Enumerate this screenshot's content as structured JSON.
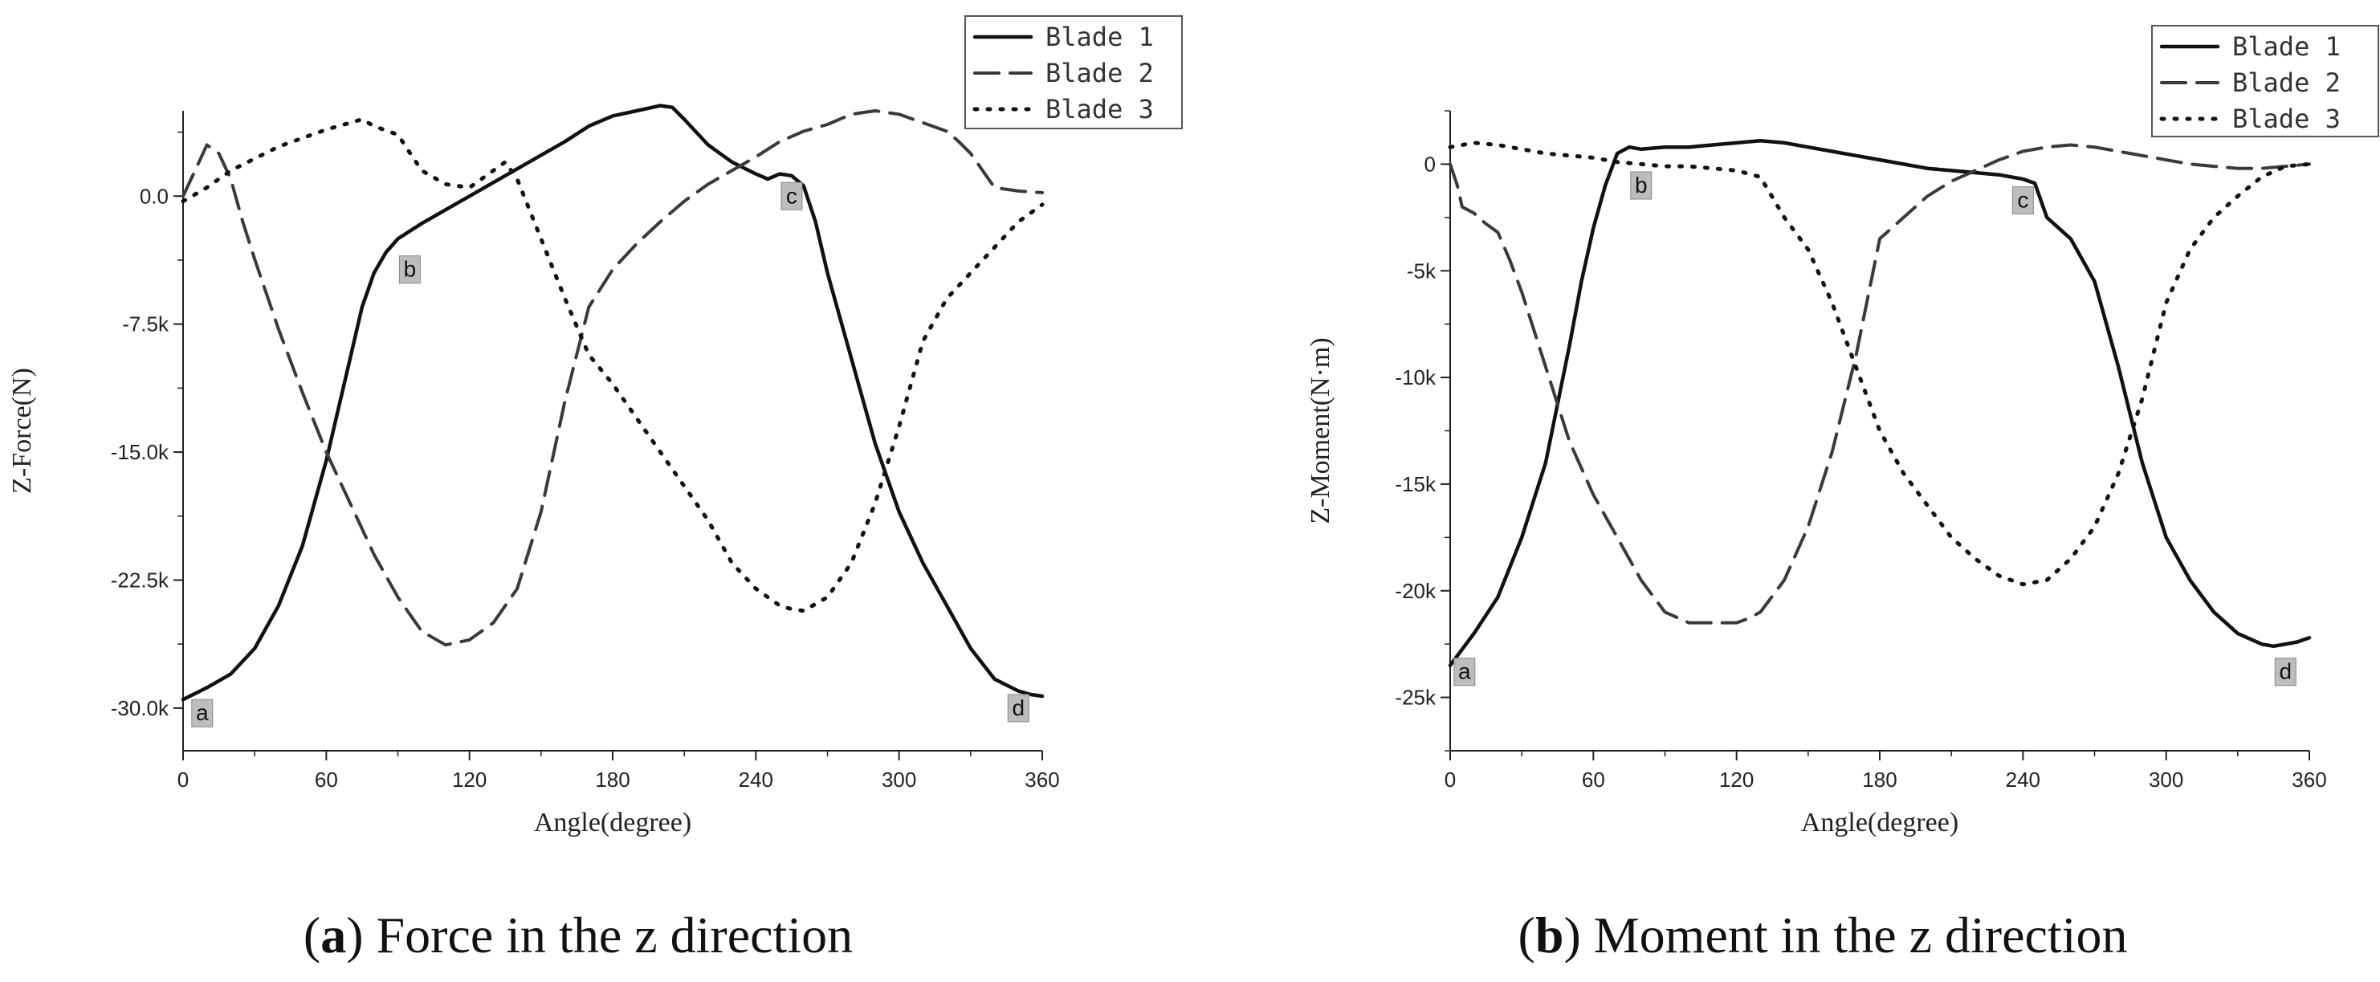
{
  "chart_data": [
    {
      "type": "line",
      "xlabel": "Angle(degree)",
      "ylabel": "Z-Force(N)",
      "xlim": [
        0,
        360
      ],
      "ylim": [
        -32500,
        5000
      ],
      "xticks": [
        0,
        60,
        120,
        180,
        240,
        300,
        360
      ],
      "xtick_labels": [
        "0",
        "60",
        "120",
        "180",
        "240",
        "300",
        "360"
      ],
      "yticks": [
        0,
        -7500,
        -15000,
        -22500,
        -30000
      ],
      "ytick_labels": [
        "0.0",
        "-7.5k",
        "-15.0k",
        "-22.5k",
        "-30.0k"
      ],
      "legend_position": "top-right",
      "series": [
        {
          "name": "Blade 1",
          "style": "solid",
          "x": [
            0,
            10,
            20,
            30,
            40,
            50,
            60,
            65,
            70,
            75,
            80,
            85,
            90,
            100,
            110,
            120,
            130,
            140,
            150,
            160,
            170,
            180,
            190,
            200,
            205,
            210,
            220,
            230,
            240,
            245,
            250,
            255,
            260,
            265,
            270,
            280,
            290,
            300,
            310,
            320,
            330,
            340,
            350,
            355,
            360
          ],
          "y": [
            -29500,
            -28800,
            -28000,
            -26500,
            -24000,
            -20500,
            -15500,
            -12500,
            -9500,
            -6500,
            -4500,
            -3300,
            -2500,
            -1600,
            -800,
            0,
            800,
            1600,
            2400,
            3200,
            4100,
            4700,
            5000,
            5300,
            5200,
            4500,
            3000,
            2000,
            1300,
            1000,
            1300,
            1200,
            600,
            -1500,
            -4500,
            -9500,
            -14500,
            -18500,
            -21500,
            -24000,
            -26500,
            -28300,
            -29000,
            -29200,
            -29300
          ]
        },
        {
          "name": "Blade 2",
          "style": "dashed",
          "x": [
            0,
            5,
            10,
            15,
            20,
            25,
            30,
            40,
            50,
            60,
            70,
            80,
            90,
            100,
            110,
            120,
            130,
            140,
            150,
            160,
            170,
            180,
            190,
            200,
            210,
            220,
            230,
            240,
            250,
            260,
            270,
            280,
            290,
            300,
            310,
            320,
            325,
            330,
            340,
            350,
            360
          ],
          "y": [
            0,
            1500,
            3000,
            2500,
            1000,
            -1500,
            -3700,
            -7800,
            -11500,
            -15000,
            -18000,
            -21000,
            -23500,
            -25500,
            -26300,
            -26000,
            -25000,
            -23000,
            -18500,
            -12000,
            -6500,
            -4300,
            -2800,
            -1500,
            -300,
            700,
            1500,
            2300,
            3200,
            3800,
            4200,
            4800,
            5000,
            4800,
            4300,
            3800,
            3200,
            2500,
            500,
            300,
            200
          ]
        },
        {
          "name": "Blade 3",
          "style": "dotted",
          "x": [
            0,
            10,
            20,
            30,
            40,
            50,
            60,
            70,
            75,
            80,
            90,
            100,
            110,
            120,
            130,
            135,
            140,
            150,
            160,
            170,
            180,
            190,
            200,
            210,
            220,
            230,
            240,
            250,
            255,
            260,
            270,
            280,
            290,
            300,
            310,
            320,
            330,
            340,
            350,
            360
          ],
          "y": [
            -300,
            500,
            1500,
            2200,
            2900,
            3400,
            3900,
            4300,
            4500,
            4100,
            3600,
            1500,
            700,
            500,
            1500,
            2000,
            1000,
            -2500,
            -6000,
            -9300,
            -11000,
            -13000,
            -15000,
            -17000,
            -19000,
            -21500,
            -23000,
            -24000,
            -24200,
            -24300,
            -23500,
            -21500,
            -18000,
            -13500,
            -8500,
            -6000,
            -4500,
            -3000,
            -1500,
            -500
          ]
        }
      ],
      "annotations": [
        {
          "label": "a",
          "x": 8,
          "y": -30300
        },
        {
          "label": "b",
          "x": 95,
          "y": -4300
        },
        {
          "label": "c",
          "x": 255,
          "y": 0
        },
        {
          "label": "d",
          "x": 350,
          "y": -30000
        }
      ]
    },
    {
      "type": "line",
      "xlabel": "Angle(degree)",
      "ylabel": "Z-Moment(N·m)",
      "xlim": [
        0,
        360
      ],
      "ylim": [
        -27500,
        2500
      ],
      "xticks": [
        0,
        60,
        120,
        180,
        240,
        300,
        360
      ],
      "xtick_labels": [
        "0",
        "60",
        "120",
        "180",
        "240",
        "300",
        "360"
      ],
      "yticks": [
        0,
        -5000,
        -10000,
        -15000,
        -20000,
        -25000
      ],
      "ytick_labels": [
        "0",
        "-5k",
        "-10k",
        "-15k",
        "-20k",
        "-25k"
      ],
      "legend_position": "top-right",
      "series": [
        {
          "name": "Blade 1",
          "style": "solid",
          "x": [
            0,
            10,
            20,
            30,
            40,
            50,
            55,
            60,
            65,
            70,
            75,
            80,
            90,
            100,
            110,
            120,
            130,
            140,
            150,
            160,
            170,
            180,
            190,
            200,
            210,
            220,
            230,
            240,
            245,
            250,
            255,
            260,
            270,
            280,
            290,
            300,
            310,
            320,
            330,
            340,
            345,
            350,
            355,
            360
          ],
          "y": [
            -23500,
            -22000,
            -20300,
            -17500,
            -14000,
            -8500,
            -5500,
            -3000,
            -1000,
            500,
            800,
            700,
            800,
            800,
            900,
            1000,
            1100,
            1000,
            800,
            600,
            400,
            200,
            0,
            -200,
            -300,
            -400,
            -500,
            -700,
            -900,
            -2500,
            -3000,
            -3500,
            -5500,
            -9500,
            -14000,
            -17500,
            -19500,
            -21000,
            -22000,
            -22500,
            -22600,
            -22500,
            -22400,
            -22200
          ]
        },
        {
          "name": "Blade 2",
          "style": "dashed",
          "x": [
            0,
            3,
            5,
            10,
            15,
            20,
            25,
            30,
            40,
            50,
            60,
            70,
            80,
            90,
            100,
            110,
            120,
            125,
            130,
            140,
            150,
            160,
            170,
            180,
            190,
            200,
            210,
            220,
            230,
            240,
            250,
            260,
            270,
            280,
            290,
            300,
            310,
            320,
            330,
            340,
            350,
            360
          ],
          "y": [
            0,
            -1000,
            -2000,
            -2300,
            -2800,
            -3200,
            -4500,
            -6000,
            -9500,
            -13000,
            -15500,
            -17500,
            -19500,
            -21000,
            -21500,
            -21500,
            -21500,
            -21300,
            -21000,
            -19500,
            -17000,
            -13500,
            -9000,
            -3500,
            -2500,
            -1500,
            -800,
            -300,
            200,
            600,
            800,
            900,
            800,
            600,
            400,
            200,
            0,
            -100,
            -200,
            -200,
            -100,
            0
          ]
        },
        {
          "name": "Blade 3",
          "style": "dotted",
          "x": [
            0,
            10,
            20,
            30,
            40,
            50,
            60,
            70,
            80,
            90,
            100,
            110,
            120,
            130,
            140,
            150,
            160,
            170,
            180,
            190,
            200,
            210,
            220,
            230,
            240,
            250,
            260,
            270,
            280,
            290,
            300,
            310,
            320,
            330,
            340,
            350,
            360
          ],
          "y": [
            800,
            1000,
            900,
            700,
            500,
            400,
            300,
            100,
            0,
            -100,
            -100,
            -200,
            -300,
            -600,
            -2500,
            -4000,
            -6500,
            -9500,
            -12500,
            -14500,
            -16000,
            -17500,
            -18500,
            -19300,
            -19700,
            -19500,
            -18500,
            -17000,
            -14500,
            -11000,
            -6500,
            -4000,
            -2500,
            -1500,
            -600,
            -100,
            0
          ]
        }
      ],
      "annotations": [
        {
          "label": "a",
          "x": 6,
          "y": -23800
        },
        {
          "label": "b",
          "x": 80,
          "y": -1000
        },
        {
          "label": "c",
          "x": 240,
          "y": -1700
        },
        {
          "label": "d",
          "x": 350,
          "y": -23800
        }
      ]
    }
  ],
  "captions": [
    {
      "letter": "a",
      "text": "Force in the z direction"
    },
    {
      "letter": "b",
      "text": "Moment in the z direction"
    }
  ]
}
